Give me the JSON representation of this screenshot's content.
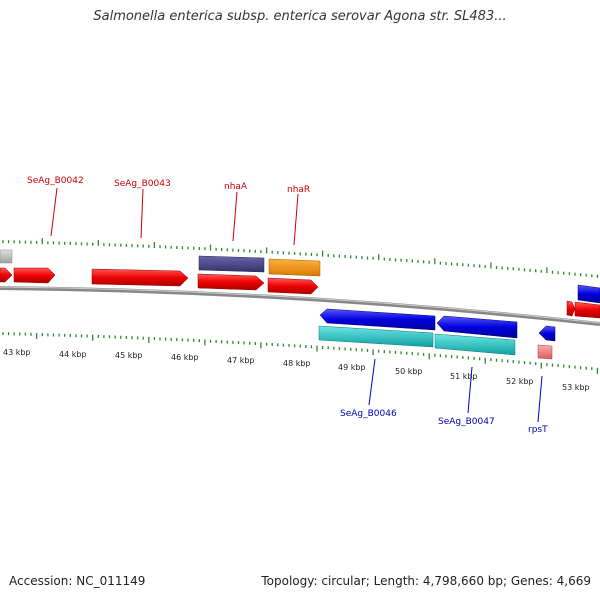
{
  "header": {
    "title": "Salmonella enterica subsp. enterica serovar Agona str. SL483..."
  },
  "footer": {
    "accession": "Accession: NC_011149",
    "stats": "Topology: circular; Length: 4,798,660 bp; Genes: 4,669"
  },
  "ruler": {
    "labels": [
      "43 kbp",
      "44 kbp",
      "45 kbp",
      "46 kbp",
      "47 kbp",
      "48 kbp",
      "49 kbp",
      "50 kbp",
      "51 kbp",
      "52 kbp",
      "53 kbp"
    ]
  },
  "gene_labels": {
    "top": [
      "SeAg_B0042",
      "SeAg_B0043",
      "nhaA",
      "nhaR"
    ],
    "bottom": [
      "SeAg_B0046",
      "SeAg_B0047",
      "rpsT"
    ]
  },
  "colors": {
    "cds_forward": "#ee0000",
    "cds_reverse": "#0000dd",
    "gene_purple": "#4a4684",
    "gene_orange": "#f39314",
    "gene_cyan": "#22c6c6",
    "gene_pink": "#f08080",
    "gene_gray": "#c0c0c0",
    "backbone": "#888888",
    "tick_green": "#2c8a2c",
    "label_red": "#cc0000",
    "label_blue": "#0000bb"
  }
}
